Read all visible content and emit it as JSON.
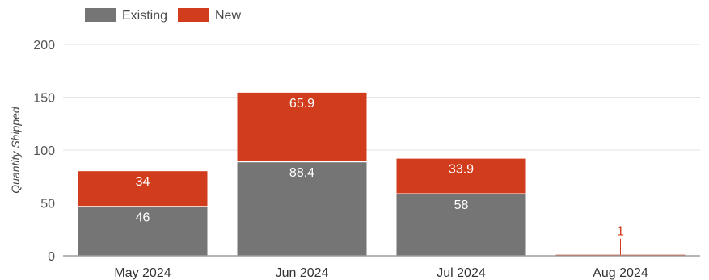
{
  "chart_data": {
    "type": "bar",
    "stacked": true,
    "title": "",
    "xlabel": "",
    "ylabel": "Quantity Shipped",
    "ylim": [
      0,
      200
    ],
    "yticks": [
      0,
      50,
      100,
      150,
      200
    ],
    "grid": true,
    "legend_position": "top-left",
    "categories": [
      "May 2024",
      "Jun 2024",
      "Jul 2024",
      "Aug 2024"
    ],
    "series": [
      {
        "name": "Existing",
        "color": "#757575",
        "values": [
          46,
          88.4,
          58,
          0
        ],
        "labels": [
          "46",
          "88.4",
          "58",
          ""
        ]
      },
      {
        "name": "New",
        "color": "#d13d1c",
        "values": [
          34,
          65.9,
          33.9,
          1
        ],
        "labels": [
          "34",
          "65.9",
          "33.9",
          "1"
        ]
      }
    ]
  }
}
